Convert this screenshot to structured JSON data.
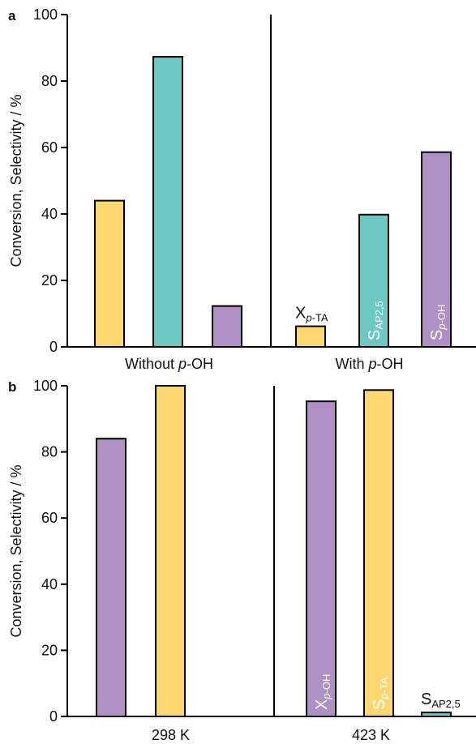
{
  "colors": {
    "yellow": "#FDD770",
    "teal": "#6DC8C3",
    "purple": "#AE90C5",
    "axis": "#000000"
  },
  "chart_data": [
    {
      "panel_label": "a",
      "type": "bar",
      "ylabel": "Conversion, Selectivity / %",
      "ylim": [
        0,
        100
      ],
      "yticks": [
        0,
        20,
        40,
        60,
        80,
        100
      ],
      "grid": false,
      "groups": [
        {
          "label_parts": [
            "Without ",
            "p",
            "-OH"
          ],
          "bars": [
            {
              "value": 44,
              "color": "yellow"
            },
            {
              "value": 87.3,
              "color": "teal"
            },
            {
              "value": 12.3,
              "color": "purple"
            }
          ]
        },
        {
          "label_parts": [
            "With ",
            "p",
            "-OH"
          ],
          "bars": [
            {
              "value": 6.2,
              "color": "yellow",
              "label_main": "X",
              "label_sub": "p-TA",
              "label_pos": "above"
            },
            {
              "value": 39.8,
              "color": "teal",
              "label_main": "S",
              "label_sub": "AP2,5",
              "label_pos": "inside"
            },
            {
              "value": 58.6,
              "color": "purple",
              "label_main": "S",
              "label_sub": "p-OH",
              "label_pos": "inside"
            }
          ]
        }
      ]
    },
    {
      "panel_label": "b",
      "type": "bar",
      "ylabel": "Conversion, Selectivity / %",
      "ylim": [
        0,
        100
      ],
      "yticks": [
        0,
        20,
        40,
        60,
        80,
        100
      ],
      "grid": false,
      "groups": [
        {
          "label_parts": [
            "298 K"
          ],
          "bars": [
            {
              "value": 84,
              "color": "purple"
            },
            {
              "value": 100,
              "color": "yellow"
            }
          ]
        },
        {
          "label_parts": [
            "423 K"
          ],
          "bars": [
            {
              "value": 95.3,
              "color": "purple",
              "label_main": "X",
              "label_sub": "p-OH",
              "label_pos": "inside"
            },
            {
              "value": 98.7,
              "color": "yellow",
              "label_main": "S",
              "label_sub": "p-TA",
              "label_pos": "inside"
            },
            {
              "value": 1.2,
              "color": "teal",
              "label_main": "S",
              "label_sub": "AP2,5",
              "label_pos": "above"
            }
          ]
        }
      ]
    }
  ]
}
